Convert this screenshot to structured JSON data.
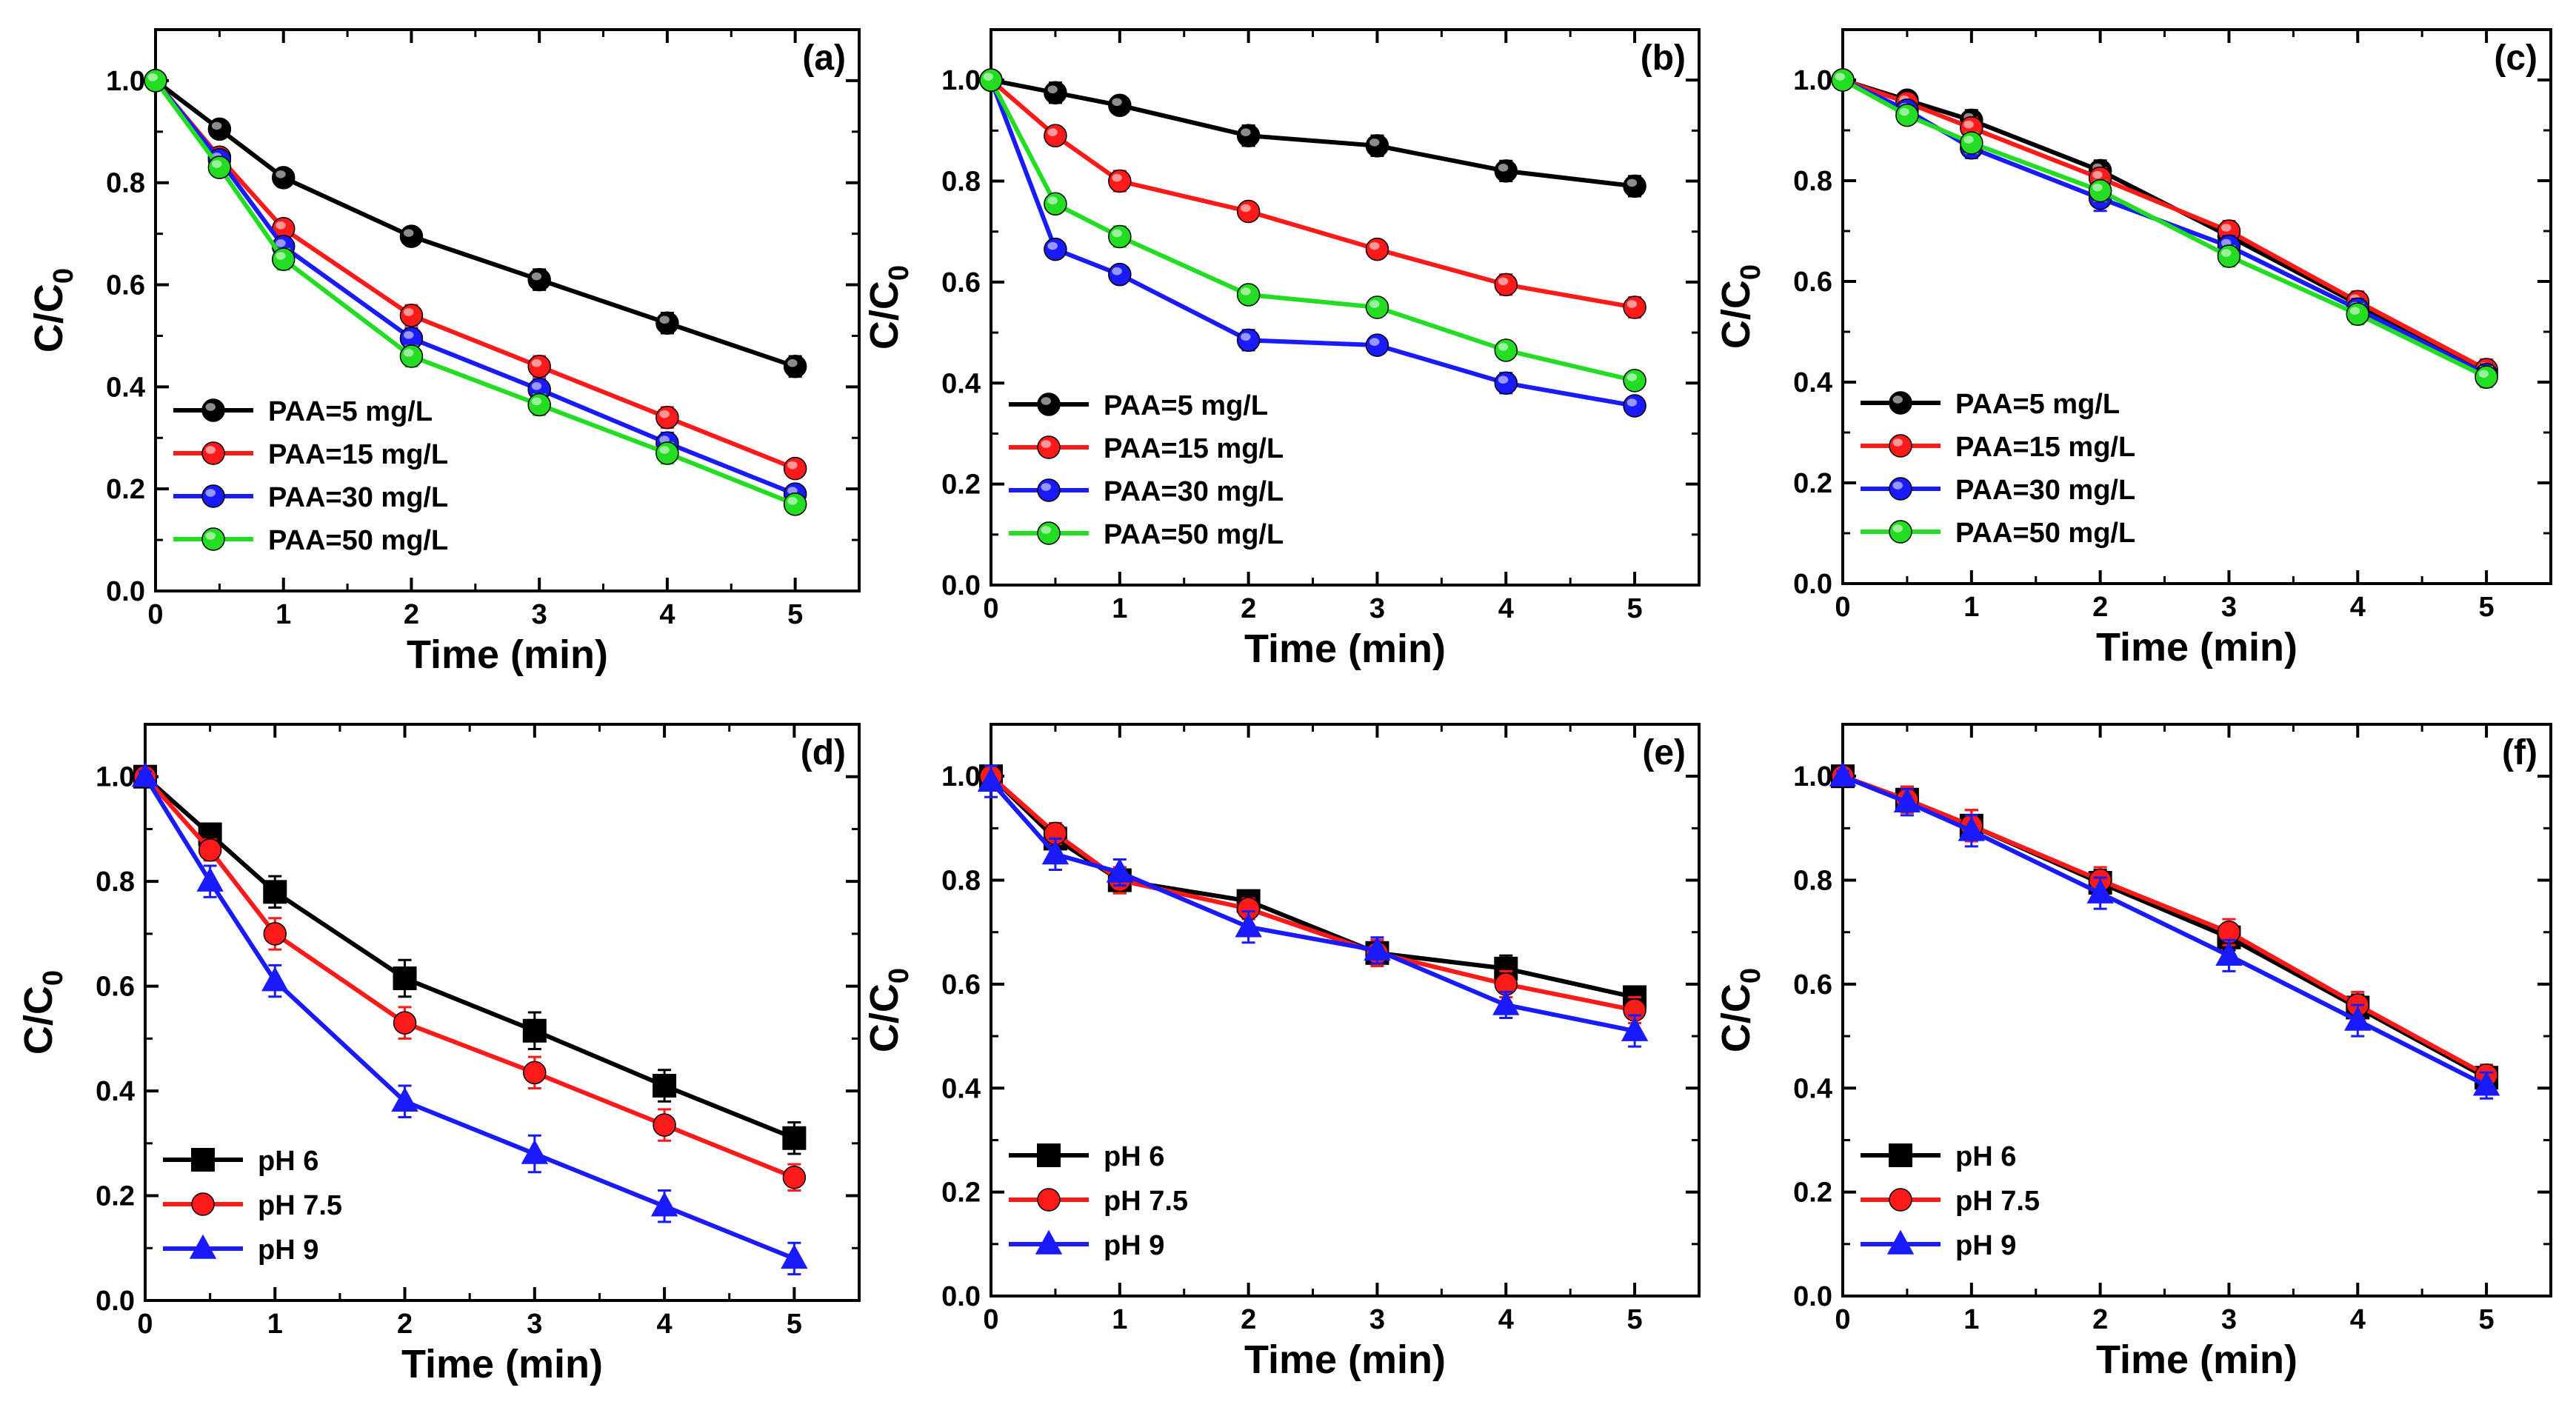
{
  "figure": {
    "background": "#ffffff"
  },
  "colors": {
    "black": "#000000",
    "red": "#ff1a1a",
    "blue": "#1a1aff",
    "green": "#22dd22"
  },
  "chart_data": [
    {
      "type": "line",
      "panel": "(a)",
      "xlabel": "Time (min)",
      "ylabel": "C/C",
      "ylabel_sub": "0",
      "xlim": [
        0,
        5.5
      ],
      "ylim": [
        0,
        1.1
      ],
      "grid": false,
      "legend": "bottom-left",
      "xticks": [
        "0",
        "1",
        "2",
        "3",
        "4",
        "5"
      ],
      "yticks": [
        "0.0",
        "0.2",
        "0.4",
        "0.6",
        "0.8",
        "1.0"
      ],
      "x": [
        0,
        0.5,
        1,
        2,
        3,
        4,
        5
      ],
      "series": [
        {
          "name": "PAA=5 mg/L",
          "color": "#000000",
          "marker": "circle",
          "values": [
            1.0,
            0.905,
            0.81,
            0.695,
            0.61,
            0.525,
            0.44
          ],
          "errors": [
            0.01,
            0.015,
            0.015,
            0.015,
            0.02,
            0.02,
            0.02
          ]
        },
        {
          "name": "PAA=15 mg/L",
          "color": "#ff1a1a",
          "marker": "circle",
          "values": [
            1.0,
            0.85,
            0.71,
            0.54,
            0.44,
            0.34,
            0.24
          ],
          "errors": [
            0.01,
            0.015,
            0.015,
            0.02,
            0.02,
            0.02,
            0.015
          ]
        },
        {
          "name": "PAA=30 mg/L",
          "color": "#1a1aff",
          "marker": "circle",
          "values": [
            1.0,
            0.845,
            0.675,
            0.495,
            0.395,
            0.29,
            0.19
          ],
          "errors": [
            0.01,
            0.015,
            0.015,
            0.02,
            0.02,
            0.02,
            0.015
          ]
        },
        {
          "name": "PAA=50 mg/L",
          "color": "#22dd22",
          "marker": "circle",
          "values": [
            1.0,
            0.83,
            0.65,
            0.46,
            0.365,
            0.27,
            0.17
          ],
          "errors": [
            0.01,
            0.015,
            0.02,
            0.02,
            0.02,
            0.02,
            0.015
          ]
        }
      ]
    },
    {
      "type": "line",
      "panel": "(b)",
      "xlabel": "Time (min)",
      "ylabel": "C/C",
      "ylabel_sub": "0",
      "xlim": [
        0,
        5.5
      ],
      "ylim": [
        0,
        1.1
      ],
      "grid": false,
      "legend": "bottom-left",
      "xticks": [
        "0",
        "1",
        "2",
        "3",
        "4",
        "5"
      ],
      "yticks": [
        "0.0",
        "0.2",
        "0.4",
        "0.6",
        "0.8",
        "1.0"
      ],
      "x": [
        0,
        0.5,
        1,
        2,
        3,
        4,
        5
      ],
      "series": [
        {
          "name": "PAA=5 mg/L",
          "color": "#000000",
          "marker": "circle",
          "values": [
            1.0,
            0.975,
            0.95,
            0.89,
            0.87,
            0.82,
            0.79
          ],
          "errors": [
            0.01,
            0.02,
            0.015,
            0.02,
            0.02,
            0.02,
            0.02
          ]
        },
        {
          "name": "PAA=15 mg/L",
          "color": "#ff1a1a",
          "marker": "circle",
          "values": [
            1.0,
            0.89,
            0.8,
            0.74,
            0.665,
            0.595,
            0.55
          ],
          "errors": [
            0.01,
            0.015,
            0.02,
            0.015,
            0.015,
            0.02,
            0.02
          ]
        },
        {
          "name": "PAA=30 mg/L",
          "color": "#1a1aff",
          "marker": "circle",
          "values": [
            1.0,
            0.665,
            0.615,
            0.485,
            0.475,
            0.4,
            0.355
          ],
          "errors": [
            0.01,
            0.015,
            0.015,
            0.02,
            0.015,
            0.02,
            0.015
          ]
        },
        {
          "name": "PAA=50 mg/L",
          "color": "#22dd22",
          "marker": "circle",
          "values": [
            1.0,
            0.755,
            0.69,
            0.575,
            0.55,
            0.465,
            0.405
          ],
          "errors": [
            0.01,
            0.015,
            0.02,
            0.015,
            0.015,
            0.015,
            0.015
          ]
        }
      ]
    },
    {
      "type": "line",
      "panel": "(c)",
      "xlabel": "Time (min)",
      "ylabel": "C/C",
      "ylabel_sub": "0",
      "xlim": [
        0,
        5.5
      ],
      "ylim": [
        0,
        1.1
      ],
      "grid": false,
      "legend": "bottom-left",
      "xticks": [
        "0",
        "1",
        "2",
        "3",
        "4",
        "5"
      ],
      "yticks": [
        "0.0",
        "0.2",
        "0.4",
        "0.6",
        "0.8",
        "1.0"
      ],
      "x": [
        0,
        0.5,
        1,
        2,
        3,
        4,
        5
      ],
      "series": [
        {
          "name": "PAA=5 mg/L",
          "color": "#000000",
          "marker": "circle",
          "values": [
            1.0,
            0.96,
            0.92,
            0.82,
            0.69,
            0.555,
            0.42
          ],
          "errors": [
            0.01,
            0.015,
            0.02,
            0.02,
            0.02,
            0.02,
            0.02
          ]
        },
        {
          "name": "PAA=15 mg/L",
          "color": "#ff1a1a",
          "marker": "circle",
          "values": [
            1.0,
            0.955,
            0.905,
            0.805,
            0.7,
            0.56,
            0.425
          ],
          "errors": [
            0.01,
            0.015,
            0.02,
            0.02,
            0.02,
            0.02,
            0.02
          ]
        },
        {
          "name": "PAA=30 mg/L",
          "color": "#1a1aff",
          "marker": "circle",
          "values": [
            1.0,
            0.94,
            0.865,
            0.765,
            0.67,
            0.545,
            0.415
          ],
          "errors": [
            0.01,
            0.015,
            0.02,
            0.025,
            0.02,
            0.02,
            0.02
          ]
        },
        {
          "name": "PAA=50 mg/L",
          "color": "#22dd22",
          "marker": "circle",
          "values": [
            1.0,
            0.93,
            0.875,
            0.78,
            0.65,
            0.535,
            0.41
          ],
          "errors": [
            0.01,
            0.015,
            0.02,
            0.02,
            0.02,
            0.02,
            0.02
          ]
        }
      ]
    },
    {
      "type": "line",
      "panel": "(d)",
      "xlabel": "Time (min)",
      "ylabel": "C/C",
      "ylabel_sub": "0",
      "xlim": [
        0,
        5.5
      ],
      "ylim": [
        0,
        1.1
      ],
      "grid": false,
      "legend": "bottom-left",
      "xticks": [
        "0",
        "1",
        "2",
        "3",
        "4",
        "5"
      ],
      "yticks": [
        "0.0",
        "0.2",
        "0.4",
        "0.6",
        "0.8",
        "1.0"
      ],
      "x": [
        0,
        0.5,
        1,
        2,
        3,
        4,
        5
      ],
      "series": [
        {
          "name": "pH 6",
          "color": "#000000",
          "marker": "square",
          "values": [
            1.0,
            0.89,
            0.78,
            0.615,
            0.515,
            0.41,
            0.31
          ],
          "errors": [
            0.01,
            0.02,
            0.03,
            0.035,
            0.035,
            0.03,
            0.03
          ]
        },
        {
          "name": "pH 7.5",
          "color": "#ff1a1a",
          "marker": "circle",
          "values": [
            1.0,
            0.86,
            0.7,
            0.53,
            0.435,
            0.335,
            0.235
          ],
          "errors": [
            0.01,
            0.02,
            0.03,
            0.03,
            0.03,
            0.03,
            0.025
          ]
        },
        {
          "name": "pH 9",
          "color": "#1a1aff",
          "marker": "triangle",
          "values": [
            1.0,
            0.8,
            0.61,
            0.38,
            0.28,
            0.18,
            0.08
          ],
          "errors": [
            0.01,
            0.03,
            0.03,
            0.03,
            0.035,
            0.03,
            0.03
          ]
        }
      ]
    },
    {
      "type": "line",
      "panel": "(e)",
      "xlabel": "Time (min)",
      "ylabel": "C/C",
      "ylabel_sub": "0",
      "xlim": [
        0,
        5.5
      ],
      "ylim": [
        0,
        1.1
      ],
      "grid": false,
      "legend": "bottom-left",
      "xticks": [
        "0",
        "1",
        "2",
        "3",
        "4",
        "5"
      ],
      "yticks": [
        "0.0",
        "0.2",
        "0.4",
        "0.6",
        "0.8",
        "1.0"
      ],
      "x": [
        0,
        0.5,
        1,
        2,
        3,
        4,
        5
      ],
      "series": [
        {
          "name": "pH 6",
          "color": "#000000",
          "marker": "square",
          "values": [
            1.0,
            0.88,
            0.8,
            0.76,
            0.66,
            0.63,
            0.575
          ],
          "errors": [
            0.015,
            0.02,
            0.025,
            0.02,
            0.025,
            0.025,
            0.02
          ]
        },
        {
          "name": "pH 7.5",
          "color": "#ff1a1a",
          "marker": "circle",
          "values": [
            1.0,
            0.89,
            0.8,
            0.745,
            0.66,
            0.6,
            0.55
          ],
          "errors": [
            0.015,
            0.02,
            0.025,
            0.02,
            0.025,
            0.025,
            0.025
          ]
        },
        {
          "name": "pH 9",
          "color": "#1a1aff",
          "marker": "triangle",
          "values": [
            0.99,
            0.85,
            0.815,
            0.71,
            0.665,
            0.56,
            0.51
          ],
          "errors": [
            0.03,
            0.03,
            0.025,
            0.03,
            0.025,
            0.025,
            0.03
          ]
        }
      ]
    },
    {
      "type": "line",
      "panel": "(f)",
      "xlabel": "Time (min)",
      "ylabel": "C/C",
      "ylabel_sub": "0",
      "xlim": [
        0,
        5.5
      ],
      "ylim": [
        0,
        1.1
      ],
      "grid": false,
      "legend": "bottom-left",
      "xticks": [
        "0",
        "1",
        "2",
        "3",
        "4",
        "5"
      ],
      "yticks": [
        "0.0",
        "0.2",
        "0.4",
        "0.6",
        "0.8",
        "1.0"
      ],
      "x": [
        0,
        0.5,
        1,
        2,
        3,
        4,
        5
      ],
      "series": [
        {
          "name": "pH 6",
          "color": "#000000",
          "marker": "square",
          "values": [
            1.0,
            0.955,
            0.905,
            0.795,
            0.69,
            0.555,
            0.42
          ],
          "errors": [
            0.01,
            0.025,
            0.03,
            0.025,
            0.025,
            0.025,
            0.02
          ]
        },
        {
          "name": "pH 7.5",
          "color": "#ff1a1a",
          "marker": "circle",
          "values": [
            1.0,
            0.955,
            0.905,
            0.8,
            0.7,
            0.56,
            0.425
          ],
          "errors": [
            0.01,
            0.025,
            0.03,
            0.025,
            0.025,
            0.025,
            0.02
          ]
        },
        {
          "name": "pH 9",
          "color": "#1a1aff",
          "marker": "triangle",
          "values": [
            1.0,
            0.95,
            0.895,
            0.775,
            0.655,
            0.53,
            0.405
          ],
          "errors": [
            0.01,
            0.025,
            0.03,
            0.03,
            0.03,
            0.03,
            0.025
          ]
        }
      ]
    }
  ]
}
